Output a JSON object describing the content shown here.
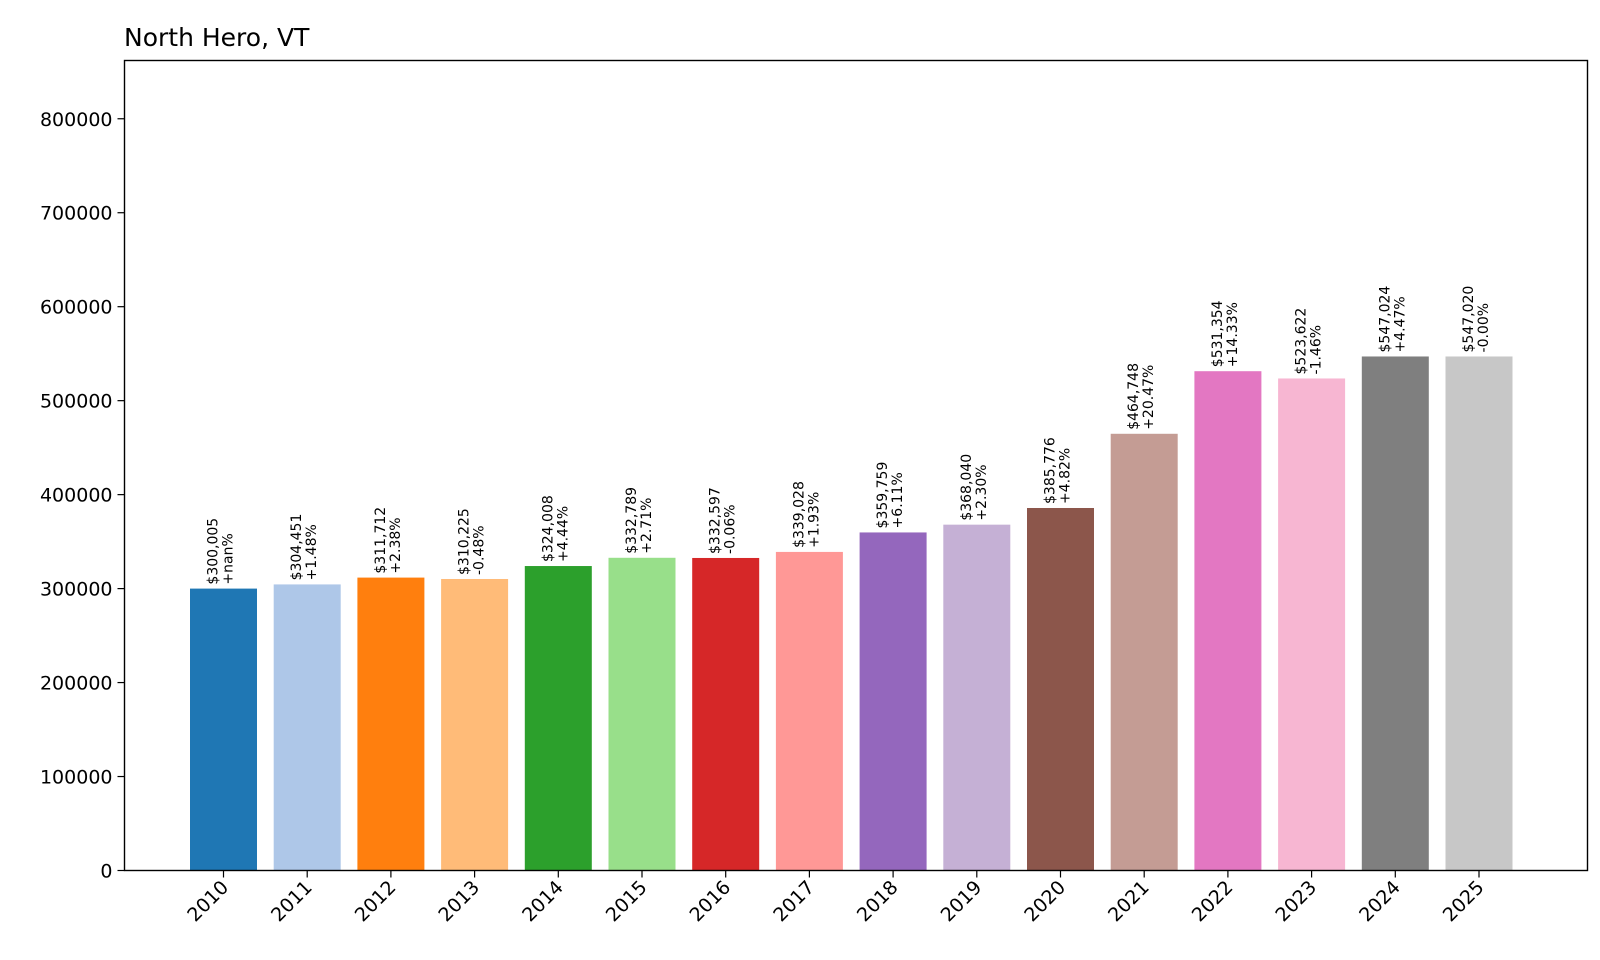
{
  "chart_data": {
    "type": "bar",
    "title": "North Hero, VT",
    "xlabel": "",
    "ylabel": "",
    "ylim": [
      0,
      862000
    ],
    "yticks": [
      0,
      100000,
      200000,
      300000,
      400000,
      500000,
      600000,
      700000,
      800000
    ],
    "ytick_labels": [
      "0",
      "100000",
      "200000",
      "300000",
      "400000",
      "500000",
      "600000",
      "700000",
      "800000"
    ],
    "grid": false,
    "categories": [
      "2010",
      "2011",
      "2012",
      "2013",
      "2014",
      "2015",
      "2016",
      "2017",
      "2018",
      "2019",
      "2020",
      "2021",
      "2022",
      "2023",
      "2024",
      "2025"
    ],
    "values": [
      300005,
      304451,
      311712,
      310225,
      324008,
      332789,
      332597,
      339028,
      359759,
      368040,
      385776,
      464748,
      531354,
      523622,
      547024,
      547020
    ],
    "value_labels": [
      "$300,005",
      "$304,451",
      "$311,712",
      "$310,225",
      "$324,008",
      "$332,789",
      "$332,597",
      "$339,028",
      "$359,759",
      "$368,040",
      "$385,776",
      "$464,748",
      "$531,354",
      "$523,622",
      "$547,024",
      "$547,020"
    ],
    "change_labels": [
      "+nan%",
      "+1.48%",
      "+2.38%",
      "-0.48%",
      "+4.44%",
      "+2.71%",
      "-0.06%",
      "+1.93%",
      "+6.11%",
      "+2.30%",
      "+4.82%",
      "+20.47%",
      "+14.33%",
      "-1.46%",
      "+4.47%",
      "-0.00%"
    ],
    "colors": [
      "#1f77b4",
      "#aec7e8",
      "#ff7f0e",
      "#ffbb78",
      "#2ca02c",
      "#98df8a",
      "#d62728",
      "#ff9896",
      "#9467bd",
      "#c5b0d5",
      "#8c564b",
      "#c49c94",
      "#e377c2",
      "#f7b6d2",
      "#7f7f7f",
      "#c7c7c7"
    ]
  }
}
